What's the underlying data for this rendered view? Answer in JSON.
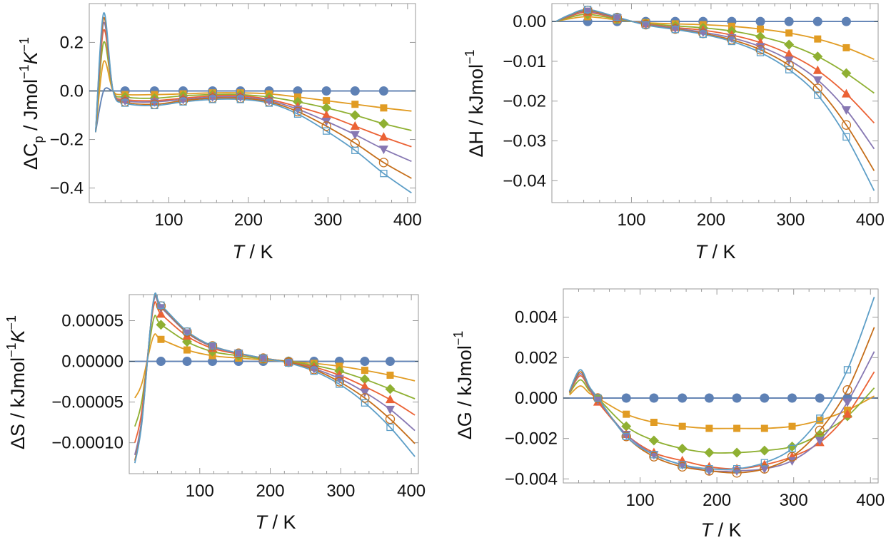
{
  "figure": {
    "colors": {
      "s0": "#5e81b5",
      "s1": "#e19c24",
      "s2": "#8fb032",
      "s3": "#eb6235",
      "s4": "#8778b3",
      "s5": "#c56e1a",
      "s6": "#5d9ec7"
    },
    "markers": {
      "s0": "filled-circle",
      "s1": "filled-square",
      "s2": "filled-diamond",
      "s3": "filled-triangle-up",
      "s4": "filled-triangle-down",
      "s5": "open-circle",
      "s6": "open-square"
    }
  },
  "chart_data": [
    {
      "type": "line",
      "xlabel_italic": "T",
      "xlabel_rest": " / K",
      "ylabel_main": "ΔC",
      "ylabel_sub": "p",
      "ylabel_unit": " / Jmol",
      "ylabel_sup1": "−1",
      "ylabel_k": "K",
      "ylabel_sup2": "−1",
      "xlim": [
        0,
        410
      ],
      "ylim": [
        -0.46,
        0.36
      ],
      "xticks": [
        "100",
        "200",
        "300",
        "400"
      ],
      "yticks": [
        "0.2",
        "0.0",
        "−0.2",
        "−0.4"
      ],
      "x_points": [
        45,
        82,
        118,
        155,
        190,
        226,
        262,
        298,
        334,
        370
      ],
      "series": [
        {
          "values": [
            0,
            0,
            0,
            0,
            0,
            0,
            0,
            0,
            0,
            0
          ],
          "peak": 0.0,
          "end": 0.0
        },
        {
          "values": [
            -0.015,
            -0.015,
            -0.012,
            -0.008,
            -0.008,
            -0.012,
            -0.025,
            -0.04,
            -0.055,
            -0.07
          ],
          "peak": 0.12,
          "end": -0.083
        },
        {
          "values": [
            -0.025,
            -0.03,
            -0.02,
            -0.015,
            -0.015,
            -0.025,
            -0.045,
            -0.07,
            -0.1,
            -0.135
          ],
          "peak": 0.2,
          "end": -0.163
        },
        {
          "values": [
            -0.035,
            -0.04,
            -0.03,
            -0.02,
            -0.02,
            -0.035,
            -0.065,
            -0.1,
            -0.145,
            -0.19
          ],
          "peak": 0.25,
          "end": -0.23
        },
        {
          "values": [
            -0.04,
            -0.045,
            -0.035,
            -0.025,
            -0.025,
            -0.04,
            -0.075,
            -0.125,
            -0.18,
            -0.24
          ],
          "peak": 0.28,
          "end": -0.29
        },
        {
          "values": [
            -0.045,
            -0.055,
            -0.04,
            -0.03,
            -0.03,
            -0.045,
            -0.085,
            -0.145,
            -0.215,
            -0.295
          ],
          "peak": 0.3,
          "end": -0.36
        },
        {
          "values": [
            -0.05,
            -0.06,
            -0.045,
            -0.035,
            -0.035,
            -0.05,
            -0.095,
            -0.165,
            -0.245,
            -0.34
          ],
          "peak": 0.32,
          "end": -0.42
        }
      ]
    },
    {
      "type": "line",
      "xlabel_italic": "T",
      "xlabel_rest": " / K",
      "ylabel_main": "ΔH / kJmol",
      "ylabel_sup1": "−1",
      "xlim": [
        0,
        410
      ],
      "ylim": [
        -0.0455,
        0.0045
      ],
      "xticks": [
        "100",
        "200",
        "300",
        "400"
      ],
      "yticks": [
        "0.00",
        "−0.01",
        "−0.02",
        "−0.03",
        "−0.04"
      ],
      "x_points": [
        45,
        82,
        118,
        155,
        190,
        226,
        262,
        298,
        334,
        370
      ],
      "series": [
        {
          "values": [
            0,
            0,
            0,
            0,
            0,
            0,
            0,
            0,
            0,
            0
          ],
          "end": 0.0
        },
        {
          "values": [
            0.0012,
            0.0004,
            -0.0003,
            -0.0006,
            -0.0008,
            -0.0012,
            -0.0019,
            -0.0029,
            -0.0044,
            -0.0066
          ],
          "end": -0.0095
        },
        {
          "values": [
            0.0018,
            0.0006,
            -0.0005,
            -0.0011,
            -0.0016,
            -0.0024,
            -0.0038,
            -0.0058,
            -0.0088,
            -0.013
          ],
          "end": -0.018
        },
        {
          "values": [
            0.0023,
            0.0008,
            -0.0006,
            -0.0015,
            -0.0022,
            -0.0034,
            -0.0053,
            -0.0082,
            -0.0123,
            -0.0182
          ],
          "end": -0.0255
        },
        {
          "values": [
            0.0026,
            0.0009,
            -0.0007,
            -0.0017,
            -0.0027,
            -0.0041,
            -0.0063,
            -0.0097,
            -0.0147,
            -0.0222
          ],
          "end": -0.032
        },
        {
          "values": [
            0.0028,
            0.001,
            -0.0008,
            -0.0019,
            -0.003,
            -0.0046,
            -0.0071,
            -0.011,
            -0.0168,
            -0.026
          ],
          "end": -0.0375
        },
        {
          "values": [
            0.003,
            0.0011,
            -0.0009,
            -0.002,
            -0.0032,
            -0.005,
            -0.0078,
            -0.0121,
            -0.0185,
            -0.029
          ],
          "end": -0.0425
        }
      ]
    },
    {
      "type": "line",
      "xlabel_italic": "T",
      "xlabel_rest": " / K",
      "ylabel_main": "ΔS / kJmol",
      "ylabel_sup1": "−1",
      "ylabel_k": "K",
      "ylabel_sup2": "−1",
      "xlim": [
        0,
        410
      ],
      "ylim": [
        -0.000138,
        8.2e-05
      ],
      "xticks": [
        "100",
        "200",
        "300",
        "400"
      ],
      "yticks": [
        "0.00005",
        "0.00000",
        "−0.00005",
        "−0.00010"
      ],
      "x_points": [
        45,
        82,
        118,
        155,
        190,
        226,
        262,
        298,
        334,
        370
      ],
      "series": [
        {
          "values": [
            0,
            0,
            0,
            0,
            0,
            0,
            0,
            0,
            0,
            0
          ],
          "start": 0.0,
          "peak": 0.0,
          "end": 0.0
        },
        {
          "values": [
            2.7e-05,
            1.4e-05,
            7e-06,
            4e-06,
            2e-06,
            0,
            -2.5e-06,
            -6e-06,
            -1.1e-05,
            -1.7e-05
          ],
          "start": -4.5e-05,
          "peak": 3e-05,
          "end": -2.4e-05
        },
        {
          "values": [
            4.5e-05,
            2.4e-05,
            1.2e-05,
            7e-06,
            3e-06,
            0,
            -5e-06,
            -1.2e-05,
            -2.2e-05,
            -3.4e-05
          ],
          "start": -8e-05,
          "peak": 5e-05,
          "end": -4.6e-05
        },
        {
          "values": [
            5.8e-05,
            3.1e-05,
            1.6e-05,
            9e-06,
            4e-06,
            -1e-06,
            -7e-06,
            -1.7e-05,
            -3.1e-05,
            -4.7e-05
          ],
          "start": -0.0001,
          "peak": 6.5e-05,
          "end": -6.6e-05
        },
        {
          "values": [
            6.6e-05,
            3.5e-05,
            1.8e-05,
            1e-05,
            4e-06,
            -1e-06,
            -9e-06,
            -2.1e-05,
            -3.8e-05,
            -5.9e-05
          ],
          "start": -0.000115,
          "peak": 7e-05,
          "end": -8.5e-05
        },
        {
          "values": [
            6.8e-05,
            3.6e-05,
            1.9e-05,
            1e-05,
            4e-06,
            -1e-06,
            -1e-05,
            -2.5e-05,
            -4.5e-05,
            -7.1e-05
          ],
          "start": -0.000122,
          "peak": 7.2e-05,
          "end": -0.000101
        },
        {
          "values": [
            6.9e-05,
            3.7e-05,
            1.9e-05,
            1e-05,
            4e-06,
            -2e-06,
            -1.2e-05,
            -2.8e-05,
            -5.1e-05,
            -8.1e-05
          ],
          "start": -0.000125,
          "peak": 7.3e-05,
          "end": -0.000117
        }
      ]
    },
    {
      "type": "line",
      "xlabel_italic": "T",
      "xlabel_rest": " / K",
      "ylabel_main": "ΔG / kJmol",
      "ylabel_sup1": "−1",
      "xlim": [
        0,
        410
      ],
      "ylim": [
        -0.0042,
        0.0054
      ],
      "xticks": [
        "100",
        "200",
        "300",
        "400"
      ],
      "yticks": [
        "0.004",
        "0.002",
        "0.000",
        "−0.002",
        "−0.004"
      ],
      "x_points": [
        45,
        82,
        118,
        155,
        190,
        226,
        262,
        298,
        334,
        370
      ],
      "series": [
        {
          "values": [
            0,
            0,
            0,
            0,
            0,
            0,
            0,
            0,
            0,
            0
          ],
          "peak": 0.0,
          "end": 0.0
        },
        {
          "values": [
            0,
            -0.0008,
            -0.0012,
            -0.0014,
            -0.0015,
            -0.0015,
            -0.0015,
            -0.0014,
            -0.0011,
            -0.0006
          ],
          "peak": 0.0006,
          "end": 0.0001
        },
        {
          "values": [
            0,
            -0.0014,
            -0.0021,
            -0.0025,
            -0.0027,
            -0.0027,
            -0.0026,
            -0.0024,
            -0.0018,
            -0.0009
          ],
          "peak": 0.0009,
          "end": 0.0005
        },
        {
          "values": [
            -0.0002,
            -0.0018,
            -0.0027,
            -0.0031,
            -0.0034,
            -0.0035,
            -0.0033,
            -0.0029,
            -0.0022,
            -0.0008
          ],
          "peak": 0.0011,
          "end": 0.0013
        },
        {
          "values": [
            -0.0001,
            -0.0018,
            -0.0028,
            -0.0033,
            -0.0036,
            -0.0036,
            -0.0035,
            -0.0031,
            -0.0021,
            -0.0002
          ],
          "peak": 0.0012,
          "end": 0.0023
        },
        {
          "values": [
            0,
            -0.0019,
            -0.0029,
            -0.0034,
            -0.0036,
            -0.0037,
            -0.0035,
            -0.0029,
            -0.0016,
            0.0004
          ],
          "peak": 0.0013,
          "end": 0.0035
        },
        {
          "values": [
            0,
            -0.0019,
            -0.0028,
            -0.0033,
            -0.0035,
            -0.0035,
            -0.0032,
            -0.0025,
            -0.001,
            0.0014
          ],
          "peak": 0.0014,
          "end": 0.005
        }
      ]
    }
  ]
}
